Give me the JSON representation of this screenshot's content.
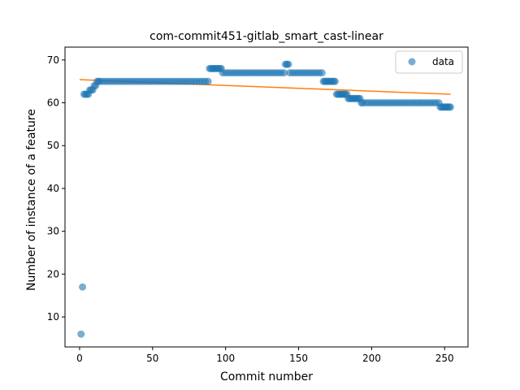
{
  "chart_data": {
    "type": "scatter",
    "title": "com-commit451-gitlab_smart_cast-linear",
    "xlabel": "Commit number",
    "ylabel": "Number of instance of a feature",
    "xlim": [
      -10,
      266
    ],
    "ylim": [
      3,
      73
    ],
    "xticks": [
      0,
      50,
      100,
      150,
      200,
      250
    ],
    "yticks": [
      10,
      20,
      30,
      40,
      50,
      60,
      70
    ],
    "grid": false,
    "legend": {
      "position": "top-right"
    },
    "colors": {
      "data": "#1f77b4",
      "fit": "#ff7f0e"
    },
    "series": [
      {
        "name": "data",
        "kind": "points",
        "points": [
          [
            1,
            6
          ],
          [
            2,
            17
          ],
          [
            3,
            62
          ],
          [
            4,
            62
          ],
          [
            5,
            62
          ],
          [
            6,
            62
          ],
          [
            7,
            63
          ],
          [
            8,
            63
          ],
          [
            9,
            63
          ],
          [
            10,
            64
          ],
          [
            11,
            64
          ],
          [
            12,
            65
          ],
          [
            13,
            65
          ],
          [
            14,
            65
          ],
          [
            16,
            65
          ],
          [
            18,
            65
          ],
          [
            20,
            65
          ],
          [
            22,
            65
          ],
          [
            24,
            65
          ],
          [
            26,
            65
          ],
          [
            28,
            65
          ],
          [
            30,
            65
          ],
          [
            32,
            65
          ],
          [
            34,
            65
          ],
          [
            36,
            65
          ],
          [
            38,
            65
          ],
          [
            40,
            65
          ],
          [
            42,
            65
          ],
          [
            44,
            65
          ],
          [
            46,
            65
          ],
          [
            48,
            65
          ],
          [
            50,
            65
          ],
          [
            52,
            65
          ],
          [
            54,
            65
          ],
          [
            56,
            65
          ],
          [
            58,
            65
          ],
          [
            60,
            65
          ],
          [
            62,
            65
          ],
          [
            64,
            65
          ],
          [
            66,
            65
          ],
          [
            68,
            65
          ],
          [
            70,
            65
          ],
          [
            72,
            65
          ],
          [
            74,
            65
          ],
          [
            76,
            65
          ],
          [
            78,
            65
          ],
          [
            80,
            65
          ],
          [
            82,
            65
          ],
          [
            84,
            65
          ],
          [
            86,
            65
          ],
          [
            88,
            65
          ],
          [
            89,
            68
          ],
          [
            90,
            68
          ],
          [
            91,
            68
          ],
          [
            92,
            68
          ],
          [
            93,
            68
          ],
          [
            94,
            68
          ],
          [
            95,
            68
          ],
          [
            96,
            68
          ],
          [
            97,
            68
          ],
          [
            98,
            67
          ],
          [
            100,
            67
          ],
          [
            102,
            67
          ],
          [
            104,
            67
          ],
          [
            106,
            67
          ],
          [
            108,
            67
          ],
          [
            110,
            67
          ],
          [
            112,
            67
          ],
          [
            114,
            67
          ],
          [
            116,
            67
          ],
          [
            118,
            67
          ],
          [
            120,
            67
          ],
          [
            122,
            67
          ],
          [
            124,
            67
          ],
          [
            126,
            67
          ],
          [
            128,
            67
          ],
          [
            130,
            67
          ],
          [
            132,
            67
          ],
          [
            134,
            67
          ],
          [
            136,
            67
          ],
          [
            138,
            67
          ],
          [
            140,
            67
          ],
          [
            141,
            69
          ],
          [
            142,
            69
          ],
          [
            143,
            69
          ],
          [
            144,
            67
          ],
          [
            146,
            67
          ],
          [
            148,
            67
          ],
          [
            150,
            67
          ],
          [
            152,
            67
          ],
          [
            154,
            67
          ],
          [
            156,
            67
          ],
          [
            158,
            67
          ],
          [
            160,
            67
          ],
          [
            162,
            67
          ],
          [
            164,
            67
          ],
          [
            166,
            67
          ],
          [
            167,
            65
          ],
          [
            168,
            65
          ],
          [
            169,
            65
          ],
          [
            170,
            65
          ],
          [
            171,
            65
          ],
          [
            172,
            65
          ],
          [
            173,
            65
          ],
          [
            174,
            65
          ],
          [
            175,
            65
          ],
          [
            176,
            62
          ],
          [
            177,
            62
          ],
          [
            178,
            62
          ],
          [
            179,
            62
          ],
          [
            180,
            62
          ],
          [
            181,
            62
          ],
          [
            182,
            62
          ],
          [
            183,
            62
          ],
          [
            184,
            61
          ],
          [
            185,
            61
          ],
          [
            186,
            61
          ],
          [
            187,
            61
          ],
          [
            188,
            61
          ],
          [
            189,
            61
          ],
          [
            190,
            61
          ],
          [
            191,
            61
          ],
          [
            192,
            61
          ],
          [
            193,
            60
          ],
          [
            194,
            60
          ],
          [
            196,
            60
          ],
          [
            198,
            60
          ],
          [
            200,
            60
          ],
          [
            202,
            60
          ],
          [
            204,
            60
          ],
          [
            206,
            60
          ],
          [
            208,
            60
          ],
          [
            210,
            60
          ],
          [
            212,
            60
          ],
          [
            214,
            60
          ],
          [
            216,
            60
          ],
          [
            218,
            60
          ],
          [
            220,
            60
          ],
          [
            222,
            60
          ],
          [
            224,
            60
          ],
          [
            226,
            60
          ],
          [
            228,
            60
          ],
          [
            230,
            60
          ],
          [
            232,
            60
          ],
          [
            234,
            60
          ],
          [
            236,
            60
          ],
          [
            238,
            60
          ],
          [
            240,
            60
          ],
          [
            242,
            60
          ],
          [
            244,
            60
          ],
          [
            246,
            60
          ],
          [
            247,
            59
          ],
          [
            248,
            59
          ],
          [
            249,
            59
          ],
          [
            250,
            59
          ],
          [
            251,
            59
          ],
          [
            252,
            59
          ],
          [
            253,
            59
          ],
          [
            254,
            59
          ]
        ]
      },
      {
        "name": "",
        "kind": "line",
        "points": [
          [
            0,
            65.4
          ],
          [
            254,
            62.0
          ]
        ]
      }
    ]
  }
}
